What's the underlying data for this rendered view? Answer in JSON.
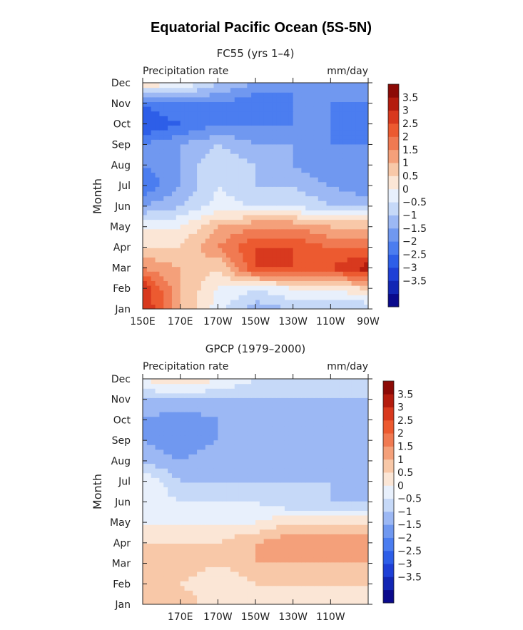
{
  "figure": {
    "title": "Equatorial Pacific Ocean (5S-5N)"
  },
  "colorbar": {
    "colors": [
      "#0a0a8c",
      "#1226b4",
      "#1e3fd6",
      "#2d5ee8",
      "#4b7df0",
      "#7098f0",
      "#9cb8f4",
      "#c6d9f8",
      "#e8f0fc",
      "#fbe6d6",
      "#f8c8a8",
      "#f4a07a",
      "#f07a52",
      "#ec5a30",
      "#d8391e",
      "#b41c0e",
      "#8c0a06"
    ],
    "labels": [
      "3.5",
      "3",
      "2.5",
      "2",
      "1.5",
      "1",
      "0.5",
      "0",
      "−0.5",
      "−1",
      "−1.5",
      "−2",
      "−2.5",
      "−3",
      "−3.5"
    ]
  },
  "chart_data": [
    {
      "type": "heatmap",
      "title": "FC55 (yrs 1–4)",
      "subtitle_left": "Precipitation rate",
      "subtitle_right": "mm/day",
      "ylabel": "Month",
      "y_ticks": [
        "Jan",
        "Feb",
        "Mar",
        "Apr",
        "May",
        "Jun",
        "Jul",
        "Aug",
        "Sep",
        "Oct",
        "Nov",
        "Dec"
      ],
      "x_ticks": [
        "150E",
        "170E",
        "170W",
        "150W",
        "130W",
        "110W",
        "90W"
      ],
      "x_range_lon_east": [
        150,
        270
      ],
      "x": [
        150,
        170,
        190,
        210,
        230,
        250,
        270
      ],
      "y": [
        "Jan",
        "Feb",
        "Mar",
        "Apr",
        "May",
        "Jun",
        "Jul",
        "Aug",
        "Sep",
        "Oct",
        "Nov",
        "Dec"
      ],
      "z": [
        [
          3.6,
          1.5,
          0.2,
          -0.8,
          -0.5,
          -0.5,
          -0.5
        ],
        [
          3.5,
          1.5,
          0.5,
          0.0,
          0.5,
          0.5,
          1.0
        ],
        [
          2.0,
          1.5,
          1.0,
          3.0,
          3.0,
          3.0,
          3.8
        ],
        [
          1.0,
          1.0,
          2.0,
          3.0,
          3.0,
          2.5,
          2.5
        ],
        [
          0.5,
          0.5,
          1.5,
          2.0,
          2.0,
          1.5,
          1.5
        ],
        [
          -1.0,
          -0.5,
          0.2,
          0.0,
          0.0,
          -0.5,
          -0.5
        ],
        [
          -2.0,
          -1.0,
          0.0,
          -0.5,
          -0.5,
          -1.0,
          -1.5
        ],
        [
          -1.5,
          -1.0,
          0.0,
          -0.5,
          -1.0,
          -1.5,
          -1.5
        ],
        [
          -1.5,
          -1.0,
          -0.5,
          -1.0,
          -1.0,
          -1.5,
          -1.5
        ],
        [
          -2.5,
          -2.0,
          -1.5,
          -1.5,
          -1.5,
          -1.5,
          -2.0
        ],
        [
          -2.0,
          -1.5,
          -1.5,
          -2.0,
          -1.5,
          -1.5,
          -1.5
        ],
        [
          1.0,
          0.5,
          -0.5,
          -1.0,
          -1.5,
          -1.5,
          -1.5
        ]
      ]
    },
    {
      "type": "heatmap",
      "title": "GPCP (1979–2000)",
      "subtitle_left": "Precipitation rate",
      "subtitle_right": "mm/day",
      "ylabel": "Month",
      "y_ticks": [
        "Jan",
        "Feb",
        "Mar",
        "Apr",
        "May",
        "Jun",
        "Jul",
        "Aug",
        "Sep",
        "Oct",
        "Nov",
        "Dec"
      ],
      "x_ticks": [
        "",
        "170E",
        "170W",
        "150W",
        "130W",
        "110W",
        ""
      ],
      "x_range_lon_east": [
        150,
        270
      ],
      "x": [
        150,
        170,
        190,
        210,
        230,
        250,
        270
      ],
      "y": [
        "Jan",
        "Feb",
        "Mar",
        "Apr",
        "May",
        "Jun",
        "Jul",
        "Aug",
        "Sep",
        "Oct",
        "Nov",
        "Dec"
      ],
      "z": [
        [
          1.0,
          1.5,
          0.5,
          0.5,
          0.5,
          0.5,
          0.5
        ],
        [
          1.5,
          1.0,
          0.5,
          1.0,
          1.0,
          1.0,
          1.0
        ],
        [
          1.5,
          1.5,
          1.0,
          1.5,
          1.5,
          1.5,
          1.5
        ],
        [
          1.0,
          1.0,
          1.0,
          1.5,
          2.0,
          2.0,
          2.0
        ],
        [
          0.5,
          0.5,
          0.5,
          0.5,
          1.0,
          1.0,
          1.0
        ],
        [
          0.5,
          0.0,
          0.0,
          0.0,
          -0.5,
          -0.5,
          -0.5
        ],
        [
          0.5,
          -0.5,
          -0.5,
          -0.5,
          -0.5,
          -0.5,
          -1.0
        ],
        [
          -0.5,
          -1.0,
          -0.5,
          -1.0,
          -1.0,
          -1.0,
          -1.0
        ],
        [
          -1.0,
          -1.5,
          -1.0,
          -1.0,
          -1.0,
          -1.0,
          -1.0
        ],
        [
          -1.0,
          -1.5,
          -1.0,
          -1.0,
          -1.0,
          -0.5,
          -1.0
        ],
        [
          -0.5,
          -0.5,
          -0.5,
          -0.5,
          -0.5,
          -0.5,
          -0.5
        ],
        [
          0.5,
          1.0,
          0.5,
          0.0,
          0.0,
          0.0,
          0.0
        ]
      ]
    }
  ]
}
